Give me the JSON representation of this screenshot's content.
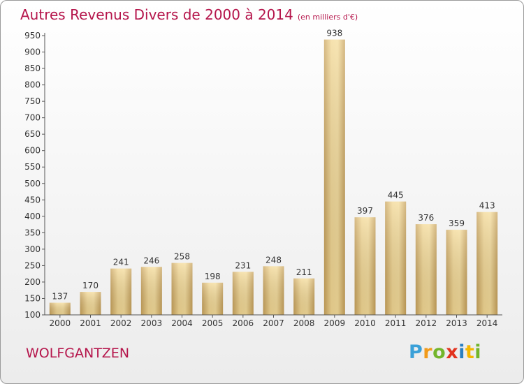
{
  "chart_data": {
    "type": "bar",
    "title": "Autres Revenus Divers de 2000 à 2014",
    "subtitle": "(en milliers d'€)",
    "categories": [
      "2000",
      "2001",
      "2002",
      "2003",
      "2004",
      "2005",
      "2006",
      "2007",
      "2008",
      "2009",
      "2010",
      "2011",
      "2012",
      "2013",
      "2014"
    ],
    "values": [
      137,
      170,
      241,
      246,
      258,
      198,
      231,
      248,
      211,
      938,
      397,
      445,
      376,
      359,
      413
    ],
    "ylim": [
      100,
      950
    ],
    "yticks": [
      100,
      150,
      200,
      250,
      300,
      350,
      400,
      450,
      500,
      550,
      600,
      650,
      700,
      750,
      800,
      850,
      900,
      950
    ],
    "grid": false,
    "bar_color": "#e8c77d"
  },
  "commune": "WOLFGANTZEN",
  "logo": {
    "text": "Proxiti"
  },
  "colors": {
    "title": "#b5154b",
    "axis": "#555555"
  }
}
